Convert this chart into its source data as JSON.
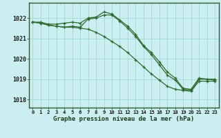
{
  "title": "Graphe pression niveau de la mer (hPa)",
  "background_color": "#cbeef0",
  "grid_color": "#a8d8d8",
  "line_color": "#2d6a2d",
  "x_labels": [
    "0",
    "1",
    "2",
    "3",
    "4",
    "5",
    "6",
    "7",
    "8",
    "9",
    "10",
    "11",
    "12",
    "13",
    "14",
    "15",
    "16",
    "17",
    "18",
    "19",
    "20",
    "21",
    "22",
    "23"
  ],
  "y_ticks": [
    1018,
    1019,
    1020,
    1021,
    1022
  ],
  "ylim": [
    1017.6,
    1022.75
  ],
  "xlim": [
    -0.5,
    23.5
  ],
  "series1": [
    1021.8,
    1021.8,
    1021.7,
    1021.7,
    1021.75,
    1021.8,
    1021.75,
    1022.0,
    1022.05,
    1022.3,
    1022.2,
    1021.9,
    1021.6,
    1021.2,
    1020.65,
    1020.3,
    1019.85,
    1019.35,
    1019.05,
    1018.55,
    1018.5,
    1019.05,
    1019.0,
    1019.0
  ],
  "series2": [
    1021.8,
    1021.75,
    1021.65,
    1021.6,
    1021.55,
    1021.6,
    1021.55,
    1021.95,
    1022.0,
    1022.15,
    1022.15,
    1021.85,
    1021.5,
    1021.1,
    1020.6,
    1020.2,
    1019.7,
    1019.2,
    1018.95,
    1018.5,
    1018.45,
    1019.0,
    1019.0,
    1018.95
  ],
  "series3": [
    1021.8,
    1021.75,
    1021.65,
    1021.6,
    1021.55,
    1021.55,
    1021.5,
    1021.45,
    1021.3,
    1021.1,
    1020.85,
    1020.6,
    1020.3,
    1019.95,
    1019.6,
    1019.25,
    1018.95,
    1018.65,
    1018.5,
    1018.45,
    1018.4,
    1018.9,
    1018.9,
    1018.9
  ]
}
